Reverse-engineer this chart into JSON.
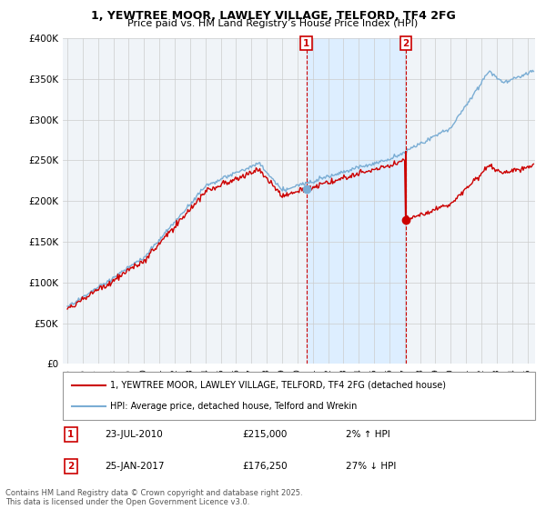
{
  "title": "1, YEWTREE MOOR, LAWLEY VILLAGE, TELFORD, TF4 2FG",
  "subtitle": "Price paid vs. HM Land Registry’s House Price Index (HPI)",
  "red_label": "1, YEWTREE MOOR, LAWLEY VILLAGE, TELFORD, TF4 2FG (detached house)",
  "blue_label": "HPI: Average price, detached house, Telford and Wrekin",
  "marker1_date": "23-JUL-2010",
  "marker1_price": "£215,000",
  "marker1_hpi": "2% ↑ HPI",
  "marker2_date": "25-JAN-2017",
  "marker2_price": "£176,250",
  "marker2_hpi": "27% ↓ HPI",
  "footer": "Contains HM Land Registry data © Crown copyright and database right 2025.\nThis data is licensed under the Open Government Licence v3.0.",
  "ylim": [
    0,
    400000
  ],
  "xlim_start": 1994.7,
  "xlim_end": 2025.5,
  "background_color": "#f0f4f8",
  "grid_color": "#cccccc",
  "red_color": "#cc0000",
  "blue_color": "#7aadd4",
  "shade_color": "#ddeeff"
}
